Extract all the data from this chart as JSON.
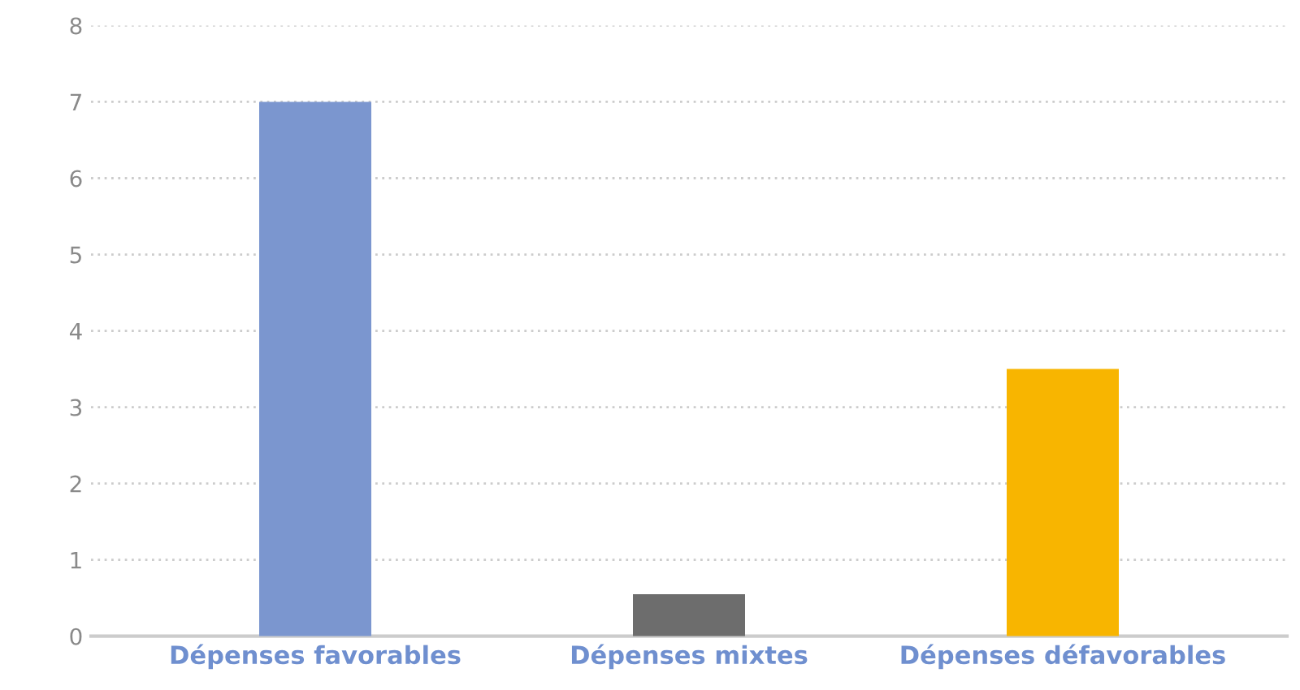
{
  "chart_data": {
    "type": "bar",
    "categories": [
      "Dépenses favorables",
      "Dépenses mixtes",
      "Dépenses défavorables"
    ],
    "values": [
      7.0,
      0.55,
      3.5
    ],
    "colors": [
      "#7b96cf",
      "#6d6d6d",
      "#f8b500"
    ],
    "ylim": [
      0,
      8
    ],
    "yticks": [
      0,
      1,
      2,
      3,
      4,
      5,
      6,
      7,
      8
    ],
    "grid": "y"
  }
}
